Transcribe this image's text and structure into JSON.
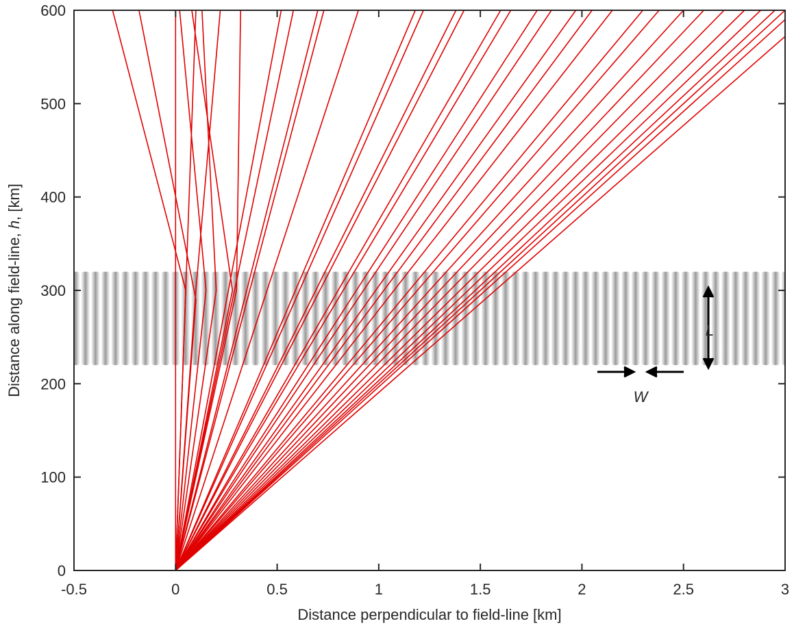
{
  "chart_data": {
    "type": "line",
    "xlabel": "Distance perpendicular to field-line [km]",
    "ylabel_parts": [
      "Distance along field-line, ",
      "h",
      ", [km]"
    ],
    "xlim": [
      -0.5,
      3
    ],
    "ylim": [
      0,
      600
    ],
    "xticks": [
      -0.5,
      0,
      0.5,
      1,
      1.5,
      2,
      2.5,
      3
    ],
    "yticks": [
      0,
      100,
      200,
      300,
      400,
      500,
      600
    ],
    "color": "#e00000",
    "band_ylim": [
      220,
      320
    ],
    "annotations": [
      "L",
      "W"
    ],
    "rays": [
      {
        "x": [
          0,
          0.05,
          -0.31
        ],
        "y": [
          0,
          300,
          600
        ]
      },
      {
        "x": [
          0,
          0.1,
          -0.18
        ],
        "y": [
          0,
          290,
          600
        ]
      },
      {
        "x": [
          0,
          0,
          0
        ],
        "y": [
          0,
          300,
          600
        ]
      },
      {
        "x": [
          0,
          0.15,
          0.02
        ],
        "y": [
          0,
          300,
          600
        ]
      },
      {
        "x": [
          0,
          0.05,
          0.1
        ],
        "y": [
          0,
          300,
          600
        ]
      },
      {
        "x": [
          0,
          0.2,
          0.13
        ],
        "y": [
          0,
          300,
          600
        ]
      },
      {
        "x": [
          0,
          0.28,
          0.08
        ],
        "y": [
          0,
          300,
          600
        ]
      },
      {
        "x": [
          0,
          0.1,
          0.22
        ],
        "y": [
          0,
          300,
          600
        ]
      },
      {
        "x": [
          0,
          0.3,
          0.32
        ],
        "y": [
          0,
          300,
          600
        ]
      },
      {
        "x": [
          0,
          0.52
        ],
        "y": [
          0,
          600
        ]
      },
      {
        "x": [
          0,
          0.58
        ],
        "y": [
          0,
          600
        ]
      },
      {
        "x": [
          0,
          0.7
        ],
        "y": [
          0,
          600
        ]
      },
      {
        "x": [
          0,
          0.73
        ],
        "y": [
          0,
          600
        ]
      },
      {
        "x": [
          0,
          0.9
        ],
        "y": [
          0,
          600
        ]
      },
      {
        "x": [
          0,
          1.18
        ],
        "y": [
          0,
          600
        ]
      },
      {
        "x": [
          0,
          1.22
        ],
        "y": [
          0,
          600
        ]
      },
      {
        "x": [
          0,
          1.38
        ],
        "y": [
          0,
          600
        ]
      },
      {
        "x": [
          0,
          1.42
        ],
        "y": [
          0,
          600
        ]
      },
      {
        "x": [
          0,
          1.6
        ],
        "y": [
          0,
          600
        ]
      },
      {
        "x": [
          0,
          1.65
        ],
        "y": [
          0,
          600
        ]
      },
      {
        "x": [
          0,
          1.78
        ],
        "y": [
          0,
          600
        ]
      },
      {
        "x": [
          0,
          1.85
        ],
        "y": [
          0,
          600
        ]
      },
      {
        "x": [
          0,
          1.97
        ],
        "y": [
          0,
          600
        ]
      },
      {
        "x": [
          0,
          2.05
        ],
        "y": [
          0,
          600
        ]
      },
      {
        "x": [
          0,
          2.15
        ],
        "y": [
          0,
          600
        ]
      },
      {
        "x": [
          0,
          2.3
        ],
        "y": [
          0,
          600
        ]
      },
      {
        "x": [
          0,
          2.38
        ],
        "y": [
          0,
          600
        ]
      },
      {
        "x": [
          0,
          2.5
        ],
        "y": [
          0,
          600
        ]
      },
      {
        "x": [
          0,
          2.6
        ],
        "y": [
          0,
          600
        ]
      },
      {
        "x": [
          0,
          2.7
        ],
        "y": [
          0,
          600
        ]
      },
      {
        "x": [
          0,
          2.8
        ],
        "y": [
          0,
          600
        ]
      },
      {
        "x": [
          0,
          2.88
        ],
        "y": [
          0,
          600
        ]
      },
      {
        "x": [
          0,
          2.95
        ],
        "y": [
          0,
          600
        ]
      },
      {
        "x": [
          0,
          3
        ],
        "y": [
          0,
          600
        ]
      },
      {
        "x": [
          0,
          3
        ],
        "y": [
          0,
          590
        ]
      },
      {
        "x": [
          0,
          3
        ],
        "y": [
          0,
          572
        ]
      }
    ]
  }
}
